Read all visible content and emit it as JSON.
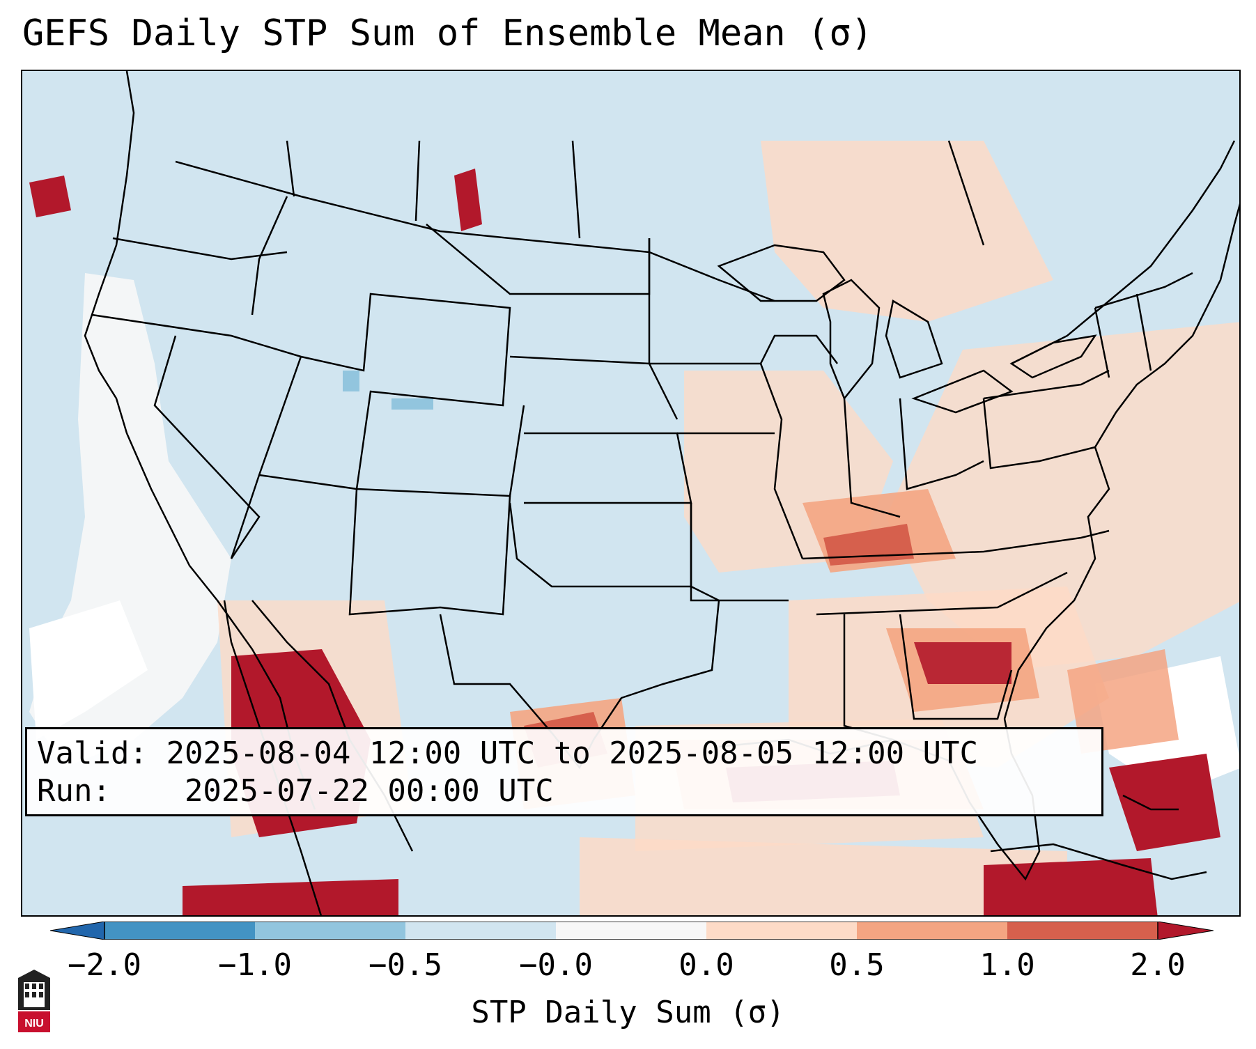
{
  "title": "GEFS Daily STP Sum of Ensemble Mean (σ)",
  "info": {
    "valid_label": "Valid:",
    "valid_value": "2025-08-04 12:00 UTC to 2025-08-05 12:00 UTC",
    "run_label": "Run:",
    "run_value": "2025-07-22 00:00 UTC"
  },
  "colorbar": {
    "label": "STP Daily Sum (σ)",
    "ticks": [
      "−2.0",
      "−1.0",
      "−0.5",
      "−0.0",
      "0.0",
      "0.5",
      "1.0",
      "2.0"
    ],
    "bins": [
      {
        "from": -2.0,
        "to": -1.0,
        "color": "#4393c3"
      },
      {
        "from": -1.0,
        "to": -0.5,
        "color": "#92c5de"
      },
      {
        "from": -0.5,
        "to": -0.0,
        "color": "#d1e5f0"
      },
      {
        "from": -0.0,
        "to": 0.0,
        "color": "#f7f7f7"
      },
      {
        "from": 0.0,
        "to": 0.5,
        "color": "#fddbc7"
      },
      {
        "from": 0.5,
        "to": 1.0,
        "color": "#f4a582"
      },
      {
        "from": 1.0,
        "to": 2.0,
        "color": "#d6604d"
      }
    ],
    "under_color": "#2166ac",
    "over_color": "#b2182b"
  },
  "colors": {
    "background_field": "#d1e5f0",
    "near_zero": "#f7f7f7",
    "light_positive": "#fddbc7",
    "mid_positive": "#f4a582",
    "high_positive": "#d6604d",
    "extreme_positive": "#b2182b",
    "negative": "#92c5de"
  },
  "logo": {
    "text": "NIU"
  }
}
